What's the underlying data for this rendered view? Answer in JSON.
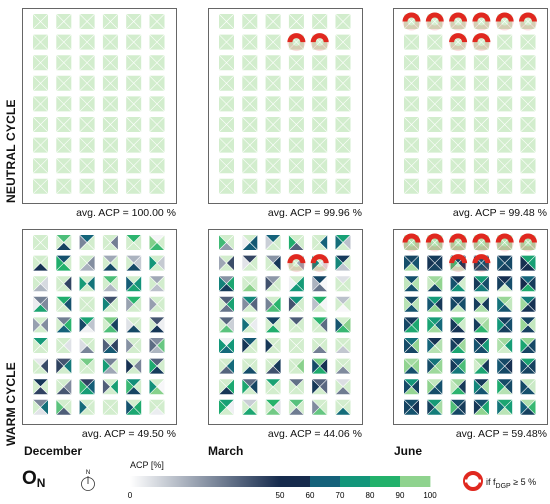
{
  "rows": [
    {
      "label": "NEUTRAL CYCLE"
    },
    {
      "label": "WARM CYCLE"
    }
  ],
  "columns": [
    {
      "label": "December"
    },
    {
      "label": "March"
    },
    {
      "label": "June"
    }
  ],
  "panels": [
    {
      "avg": "avg. ACP = 100.00 %",
      "fixed_acp": 100
    },
    {
      "avg": "avg. ACP = 99.96 %",
      "fixed_acp": 100,
      "flagged_cells": [
        [
          1,
          3
        ],
        [
          1,
          4
        ]
      ]
    },
    {
      "avg": "avg. ACP = 99.48 %",
      "fixed_acp": 100,
      "flagged_cells": [
        [
          0,
          0
        ],
        [
          0,
          1
        ],
        [
          0,
          2
        ],
        [
          0,
          3
        ],
        [
          0,
          4
        ],
        [
          0,
          5
        ],
        [
          1,
          2
        ],
        [
          1,
          3
        ]
      ]
    },
    {
      "avg": "avg. ACP = 49.50 %",
      "seed": 11,
      "pattern": "sparse-mixed"
    },
    {
      "avg": "avg. ACP = 44.06 %",
      "seed": 23,
      "pattern": "sparse-mixed",
      "flagged_cells": [
        [
          1,
          3
        ],
        [
          1,
          4
        ]
      ]
    },
    {
      "avg": "avg. ACP = 59.48%",
      "seed": 37,
      "pattern": "dense-dark",
      "flagged_cells": [
        [
          0,
          0
        ],
        [
          0,
          1
        ],
        [
          0,
          2
        ],
        [
          0,
          3
        ],
        [
          0,
          4
        ],
        [
          0,
          5
        ],
        [
          1,
          2
        ],
        [
          1,
          3
        ]
      ]
    }
  ],
  "grid": {
    "rows": 9,
    "cols": 6
  },
  "orientation": {
    "label": "O",
    "sub": "N",
    "north": "N"
  },
  "colorbar": {
    "title": "ACP [%]",
    "ticks": [
      "0",
      "50",
      "60",
      "70",
      "80",
      "90",
      "100"
    ],
    "colors": {
      "zero": "#ffffff",
      "fifty": "#162b4d",
      "sixty": "#15617a",
      "seventy": "#13967a",
      "eighty": "#22b16b",
      "ninety": "#8fd38e",
      "hundred": "#d2edcd"
    }
  },
  "legend": {
    "prefix": "if f",
    "sub": "DGP",
    "suffix": " ≥ 5 %",
    "marker_color": "#e0281f"
  }
}
